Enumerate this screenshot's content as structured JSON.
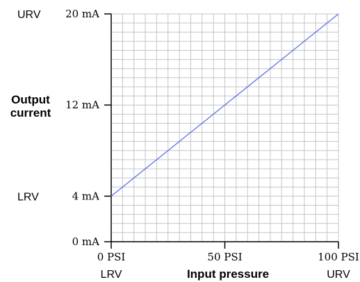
{
  "chart_data": {
    "type": "line",
    "xlabel": "Input pressure",
    "ylabel_lines": [
      "Output",
      "current"
    ],
    "xlim": [
      0,
      100
    ],
    "ylim": [
      0,
      20
    ],
    "x_ticks": [
      {
        "value": 0,
        "label": "0 PSI",
        "range_label": "LRV"
      },
      {
        "value": 50,
        "label": "50 PSI",
        "range_label": ""
      },
      {
        "value": 100,
        "label": "100 PSI",
        "range_label": "URV"
      }
    ],
    "y_ticks": [
      {
        "value": 0,
        "label": "0 mA",
        "range_label": ""
      },
      {
        "value": 4,
        "label": "4 mA",
        "range_label": "LRV"
      },
      {
        "value": 12,
        "label": "12 mA",
        "range_label": ""
      },
      {
        "value": 20,
        "label": "20 mA",
        "range_label": "URV"
      }
    ],
    "grid": true,
    "x_grid_divisions": 20,
    "y_grid_divisions": 25,
    "series": [
      {
        "x": [
          0,
          100
        ],
        "y": [
          4,
          20
        ],
        "color": "#5b6ee8"
      }
    ]
  }
}
